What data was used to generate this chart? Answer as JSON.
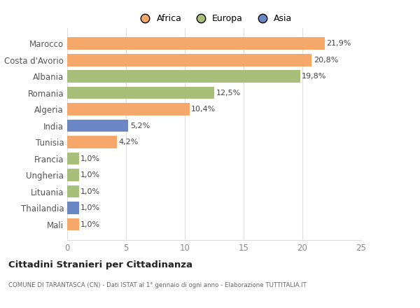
{
  "categories": [
    "Mali",
    "Thailandia",
    "Lituania",
    "Ungheria",
    "Francia",
    "Tunisia",
    "India",
    "Algeria",
    "Romania",
    "Albania",
    "Costa d'Avorio",
    "Marocco"
  ],
  "values": [
    1.0,
    1.0,
    1.0,
    1.0,
    1.0,
    4.2,
    5.2,
    10.4,
    12.5,
    19.8,
    20.8,
    21.9
  ],
  "labels": [
    "1,0%",
    "1,0%",
    "1,0%",
    "1,0%",
    "1,0%",
    "4,2%",
    "5,2%",
    "10,4%",
    "12,5%",
    "19,8%",
    "20,8%",
    "21,9%"
  ],
  "colors": [
    "#f5a86a",
    "#6b87c4",
    "#a8bf7a",
    "#a8bf7a",
    "#a8bf7a",
    "#f5a86a",
    "#6b87c4",
    "#f5a86a",
    "#a8bf7a",
    "#a8bf7a",
    "#f5a86a",
    "#f5a86a"
  ],
  "legend_labels": [
    "Africa",
    "Europa",
    "Asia"
  ],
  "legend_colors": [
    "#f5a86a",
    "#a8bf7a",
    "#6b87c4"
  ],
  "xlim": [
    0,
    25
  ],
  "xticks": [
    0,
    5,
    10,
    15,
    20,
    25
  ],
  "title": "Cittadini Stranieri per Cittadinanza",
  "subtitle": "COMUNE DI TARANTASCA (CN) - Dati ISTAT al 1° gennaio di ogni anno - Elaborazione TUTTITALIA.IT",
  "background_color": "#ffffff",
  "bar_height": 0.75,
  "grid_color": "#dddddd",
  "label_color": "#555555",
  "ylabel_color": "#666666"
}
